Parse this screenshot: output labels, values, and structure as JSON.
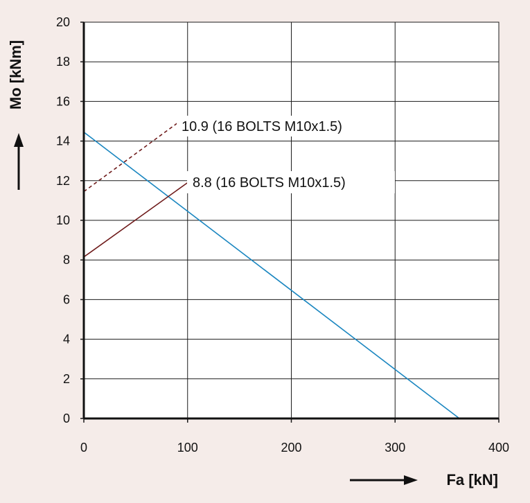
{
  "chart_data": {
    "type": "line",
    "xlabel": "Fa [kN]",
    "ylabel": "Mo [kNm]",
    "xlim": [
      0,
      400
    ],
    "ylim": [
      0,
      20
    ],
    "xticks": [
      "0",
      "100",
      "200",
      "300",
      "400"
    ],
    "yticks": [
      "0",
      "2",
      "4",
      "6",
      "8",
      "10",
      "12",
      "14",
      "16",
      "18",
      "20"
    ],
    "grid": true,
    "series": [
      {
        "id": "blue",
        "x": [
          0,
          362
        ],
        "y": [
          14.45,
          0
        ],
        "color": "#1a86c0",
        "dash": false
      },
      {
        "id": "bolt109",
        "name": "10.9 (16 BOLTS M10x1.5)",
        "x": [
          0,
          90
        ],
        "y": [
          11.45,
          14.9
        ],
        "color": "#6e1a1a",
        "dash": true
      },
      {
        "id": "bolt88",
        "name": "8.8 (16 BOLTS M10x1.5)",
        "x": [
          0,
          100
        ],
        "y": [
          8.15,
          11.9
        ],
        "color": "#6e1a1a",
        "dash": false
      }
    ]
  }
}
